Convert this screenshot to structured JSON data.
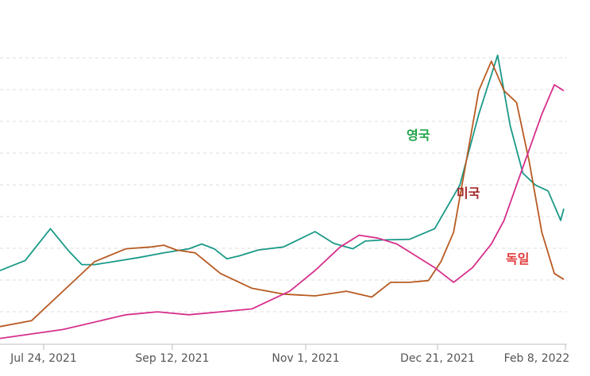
{
  "chart_data": {
    "type": "line",
    "x_tick_labels": [
      "Jul 24, 2021",
      "Sep 12, 2021",
      "Nov 1, 2021",
      "Dec 21, 2021",
      "Feb 8, 2022"
    ],
    "grid": "horizontal dashed",
    "series": [
      {
        "name": "영국",
        "color": "#1a9988",
        "label_color": "#22a54a",
        "points": [
          [
            0,
            0.15
          ],
          [
            8,
            0.32
          ],
          [
            16,
            0.86
          ],
          [
            22,
            0.47
          ],
          [
            26,
            0.25
          ],
          [
            30,
            0.25
          ],
          [
            36,
            0.3
          ],
          [
            44,
            0.37
          ],
          [
            52,
            0.45
          ],
          [
            60,
            0.52
          ],
          [
            64,
            0.6
          ],
          [
            68,
            0.52
          ],
          [
            72,
            0.35
          ],
          [
            76,
            0.4
          ],
          [
            82,
            0.5
          ],
          [
            90,
            0.55
          ],
          [
            100,
            0.81
          ],
          [
            106,
            0.61
          ],
          [
            112,
            0.52
          ],
          [
            116,
            0.65
          ],
          [
            122,
            0.67
          ],
          [
            130,
            0.68
          ],
          [
            138,
            0.86
          ],
          [
            146,
            1.6
          ],
          [
            152,
            2.8
          ],
          [
            158,
            3.8
          ],
          [
            162,
            2.6
          ],
          [
            166,
            1.8
          ],
          [
            170,
            1.6
          ],
          [
            174,
            1.5
          ],
          [
            178,
            1.0
          ],
          [
            179,
            1.2
          ]
        ]
      },
      {
        "name": "미국",
        "color": "#b85a22",
        "label_color": "#a52a2a",
        "points": [
          [
            0,
            -0.8
          ],
          [
            10,
            -0.7
          ],
          [
            20,
            -0.2
          ],
          [
            30,
            0.3
          ],
          [
            40,
            0.52
          ],
          [
            48,
            0.55
          ],
          [
            52,
            0.58
          ],
          [
            56,
            0.5
          ],
          [
            62,
            0.45
          ],
          [
            70,
            0.1
          ],
          [
            80,
            -0.15
          ],
          [
            90,
            -0.25
          ],
          [
            100,
            -0.28
          ],
          [
            110,
            -0.2
          ],
          [
            118,
            -0.3
          ],
          [
            124,
            -0.05
          ],
          [
            130,
            -0.05
          ],
          [
            136,
            -0.02
          ],
          [
            140,
            0.3
          ],
          [
            144,
            0.8
          ],
          [
            148,
            2.0
          ],
          [
            152,
            3.2
          ],
          [
            156,
            3.7
          ],
          [
            160,
            3.2
          ],
          [
            164,
            3.0
          ],
          [
            168,
            2.0
          ],
          [
            172,
            0.8
          ],
          [
            176,
            0.1
          ],
          [
            179,
            0.0
          ]
        ]
      },
      {
        "name": "독일",
        "color": "#d62f8c",
        "label_color": "#e03a3a",
        "points": [
          [
            0,
            -1.0
          ],
          [
            20,
            -0.85
          ],
          [
            40,
            -0.6
          ],
          [
            50,
            -0.55
          ],
          [
            60,
            -0.6
          ],
          [
            70,
            -0.55
          ],
          [
            80,
            -0.5
          ],
          [
            86,
            -0.35
          ],
          [
            92,
            -0.2
          ],
          [
            100,
            0.15
          ],
          [
            108,
            0.55
          ],
          [
            114,
            0.75
          ],
          [
            120,
            0.7
          ],
          [
            126,
            0.6
          ],
          [
            132,
            0.4
          ],
          [
            138,
            0.2
          ],
          [
            144,
            -0.05
          ],
          [
            150,
            0.2
          ],
          [
            156,
            0.6
          ],
          [
            160,
            1.0
          ],
          [
            164,
            1.6
          ],
          [
            168,
            2.2
          ],
          [
            172,
            2.8
          ],
          [
            176,
            3.3
          ],
          [
            179,
            3.2
          ]
        ]
      }
    ]
  }
}
